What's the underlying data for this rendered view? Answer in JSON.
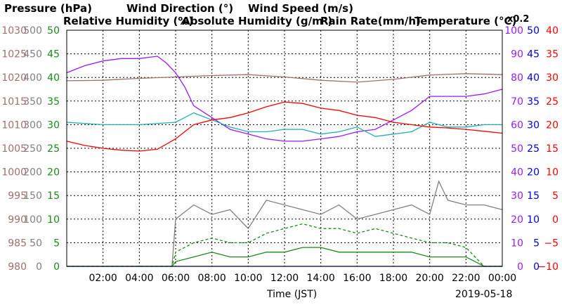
{
  "chart_data": {
    "type": "line",
    "date": "2019-05-18",
    "xlabel": "Time (JST)",
    "x_ticks": [
      "02:00",
      "04:00",
      "06:00",
      "08:00",
      "10:00",
      "12:00",
      "14:00",
      "16:00",
      "18:00",
      "20:00",
      "22:00",
      "00:00"
    ],
    "xlim_hours": [
      0,
      24
    ],
    "grid": true,
    "legend_placement": "top",
    "axes": {
      "pressure": {
        "label": "Pressure (hPa)",
        "color": "#a0706a",
        "ylim": [
          980,
          1030
        ],
        "ticks": [
          "980",
          "985",
          "990",
          "995",
          "1000",
          "1005",
          "1010",
          "1015",
          "1020",
          "1025",
          "1030"
        ]
      },
      "wind_direction": {
        "label": "Wind Direction (°)",
        "color": "#808080",
        "ylim": [
          0,
          500
        ],
        "ticks": [
          "0",
          "50",
          "100",
          "150",
          "200",
          "250",
          "300",
          "350",
          "400",
          "450",
          "500"
        ]
      },
      "wind_speed": {
        "label": "Wind Speed (m/s)",
        "color": "#1a8a1a",
        "ylim": [
          0,
          50
        ],
        "ticks": [
          "0",
          "5",
          "10",
          "15",
          "20",
          "25",
          "30",
          "35",
          "40",
          "45",
          "50"
        ]
      },
      "humidity": {
        "label": "Relative Humidity (%)",
        "color": "#9a1aff",
        "ylim": [
          0,
          100
        ],
        "ticks": [
          "0",
          "10",
          "20",
          "30",
          "40",
          "50",
          "60",
          "70",
          "80",
          "90",
          "100"
        ]
      },
      "rain": {
        "label": "Rain Rate(mm/h)",
        "color": "#0000dd",
        "ylim": [
          0,
          50
        ],
        "ticks": [
          "0",
          "5",
          "10",
          "15",
          "20",
          "25",
          "30",
          "35",
          "40",
          "45",
          "50"
        ]
      },
      "temperature": {
        "label": "Temperature (°C)",
        "color": "#ff0000",
        "ylim": [
          -10,
          40
        ],
        "ticks": [
          "−10",
          "−5",
          "0",
          "5",
          "10",
          "15",
          "20",
          "25",
          "30",
          "35",
          "40"
        ]
      }
    },
    "abs_humidity": {
      "label": "Absolute Humidity (g/m³)",
      "color": "#20b0b0"
    },
    "scale_note": "x0.2",
    "series": [
      {
        "name": "Pressure (hPa)",
        "axis": "pressure",
        "color": "#a0706a",
        "x": [
          0,
          2,
          4,
          6,
          8,
          10,
          12,
          14,
          16,
          18,
          20,
          22,
          24
        ],
        "y": [
          1019.3,
          1019.4,
          1019.8,
          1020.1,
          1020.4,
          1020.6,
          1020.1,
          1019.4,
          1019.0,
          1019.6,
          1020.5,
          1020.8,
          1020.6
        ]
      },
      {
        "name": "Relative Humidity (%)",
        "axis": "humidity",
        "color": "#9a1aff",
        "x": [
          0,
          1,
          2,
          3,
          4,
          5,
          5.5,
          6,
          6.5,
          7,
          8,
          9,
          10,
          11,
          12,
          13,
          14,
          15,
          16,
          17,
          18,
          19,
          20,
          21,
          22,
          23,
          24
        ],
        "y": [
          82,
          85,
          87,
          88,
          88,
          89,
          86,
          82,
          76,
          68,
          63,
          58,
          56,
          54,
          53,
          53,
          54,
          55,
          57,
          58,
          62,
          66,
          72,
          72,
          72,
          73,
          75
        ]
      },
      {
        "name": "Absolute Humidity (g/m³)",
        "axis": "humidity",
        "color": "#20b0b0",
        "x": [
          0,
          2,
          4,
          6,
          7,
          8,
          9,
          10,
          11,
          12,
          13,
          14,
          15,
          16,
          17,
          18,
          19,
          20,
          21,
          22,
          23,
          24
        ],
        "y": [
          61,
          60,
          60,
          61,
          65,
          62,
          59,
          57,
          57,
          58,
          58,
          56,
          57,
          59,
          55,
          56,
          57,
          61,
          59,
          59,
          60,
          60
        ]
      },
      {
        "name": "Temperature (°C)",
        "axis": "temperature",
        "color": "#ff0000",
        "x": [
          0,
          1,
          2,
          3,
          4,
          5,
          6,
          7,
          8,
          9,
          10,
          11,
          12,
          13,
          14,
          15,
          16,
          17,
          18,
          19,
          20,
          21,
          22,
          23,
          24
        ],
        "y": [
          16.5,
          15.6,
          15,
          14.6,
          14.4,
          14.8,
          17,
          20,
          21,
          21.5,
          22.5,
          23.8,
          24.8,
          24.5,
          23.5,
          23,
          22,
          21.5,
          20.5,
          20,
          19.5,
          19.3,
          19,
          18.6,
          18.2
        ]
      },
      {
        "name": "Wind Direction (°)",
        "axis": "wind_direction",
        "color": "#808080",
        "x": [
          5.8,
          6,
          7,
          8,
          9,
          10,
          11,
          12,
          13,
          14,
          15,
          16,
          17,
          18,
          19,
          20,
          20.5,
          21,
          22,
          23,
          24
        ],
        "y": [
          0,
          100,
          130,
          110,
          120,
          80,
          140,
          130,
          120,
          110,
          130,
          100,
          110,
          120,
          130,
          110,
          180,
          140,
          130,
          130,
          120
        ]
      },
      {
        "name": "Wind Speed (m/s)",
        "axis": "wind_speed",
        "color": "#1a8a1a",
        "x": [
          0,
          5.8,
          6,
          7,
          8,
          9,
          10,
          11,
          12,
          13,
          14,
          15,
          16,
          17,
          18,
          19,
          20,
          21,
          22,
          23,
          24
        ],
        "y": [
          0,
          0,
          1,
          2,
          3,
          2,
          2,
          3,
          3,
          4,
          4,
          3,
          3,
          3,
          3,
          3,
          2,
          2,
          2,
          0,
          0
        ]
      },
      {
        "name": "Wind Speed gust (m/s)",
        "axis": "wind_speed",
        "color": "#1a8a1a",
        "dash": true,
        "x": [
          0,
          5.8,
          6,
          7,
          8,
          9,
          10,
          11,
          12,
          13,
          14,
          15,
          16,
          17,
          18,
          19,
          20,
          21,
          22,
          23,
          24
        ],
        "y": [
          0,
          0,
          3,
          5,
          6,
          5,
          5,
          7,
          8,
          9,
          8,
          8,
          7,
          8,
          7,
          6,
          5,
          5,
          4,
          0,
          0
        ]
      },
      {
        "name": "Rain Rate(mm/h)",
        "axis": "rain",
        "color": "#0000dd",
        "x": [
          0,
          24
        ],
        "y": [
          0,
          0
        ]
      }
    ]
  }
}
